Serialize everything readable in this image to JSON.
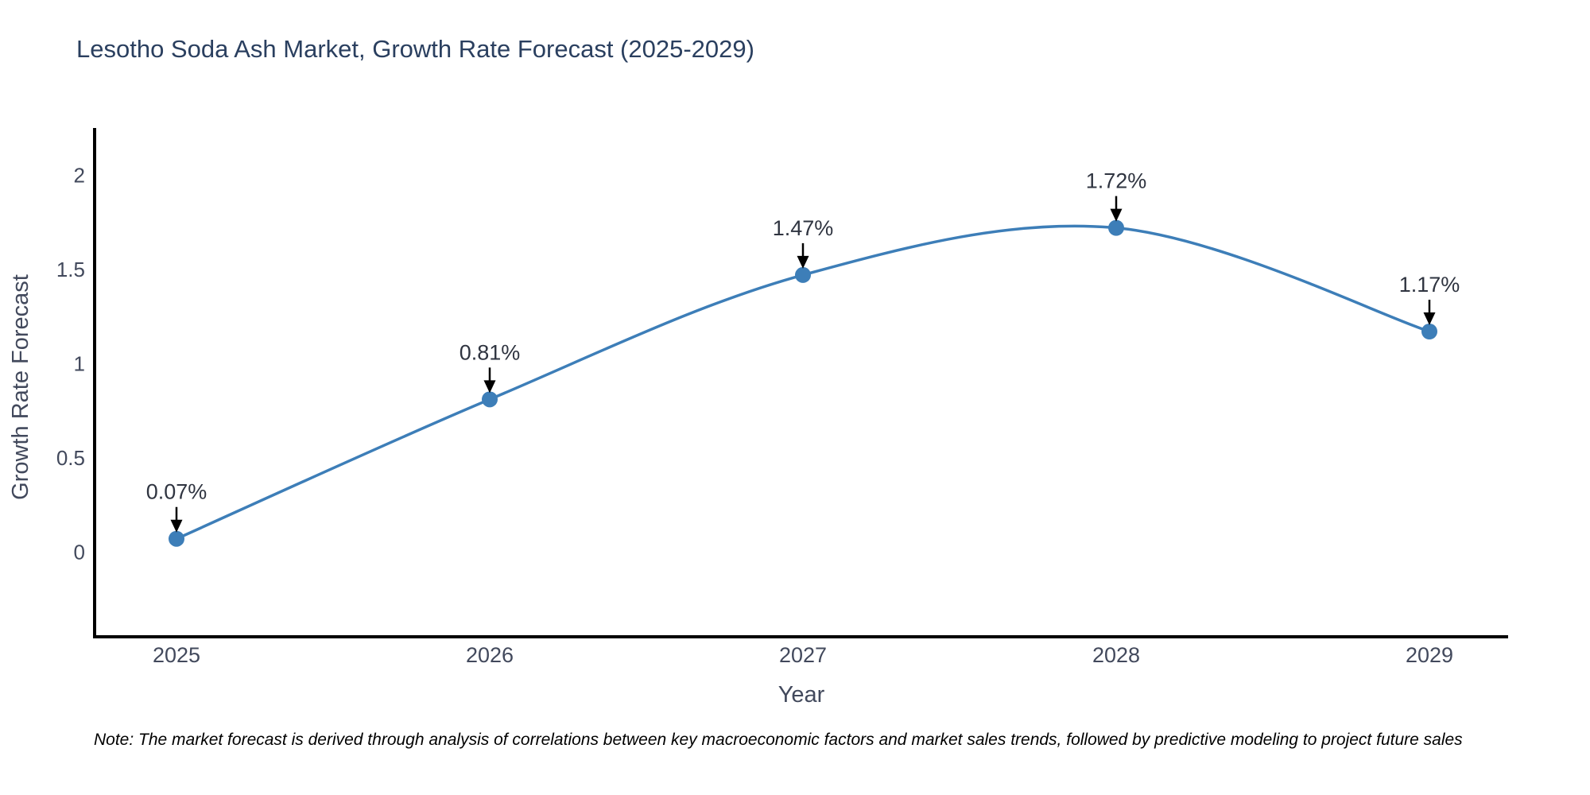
{
  "title": "Lesotho Soda Ash Market, Growth Rate Forecast (2025-2029)",
  "note": "Note: The market forecast is derived through analysis of correlations between key macroeconomic factors and market sales trends, followed by predictive modeling to project future sales",
  "chart_data": {
    "type": "line",
    "line_shape": "spline",
    "title": "Lesotho Soda Ash Market, Growth Rate Forecast (2025-2029)",
    "xlabel": "Year",
    "ylabel": "Growth Rate Forecast",
    "categories": [
      "2025",
      "2026",
      "2027",
      "2028",
      "2029"
    ],
    "series": [
      {
        "name": "Growth Rate Forecast",
        "values": [
          0.07,
          0.81,
          1.47,
          1.72,
          1.17
        ]
      }
    ],
    "point_labels": [
      "0.07%",
      "0.81%",
      "1.47%",
      "1.72%",
      "1.17%"
    ],
    "yticks": [
      0,
      0.5,
      1,
      1.5,
      2
    ],
    "ylim": [
      -0.45,
      2.25
    ],
    "grid": false,
    "legend_position": "none",
    "colors": {
      "line": "#3d7eb8",
      "marker": "#3d7eb8",
      "axis": "#000000",
      "tick_text": "#42495c",
      "title_text": "#2a3f5f",
      "annotation_text": "#2f3440",
      "arrow": "#000000",
      "background": "#ffffff"
    }
  }
}
